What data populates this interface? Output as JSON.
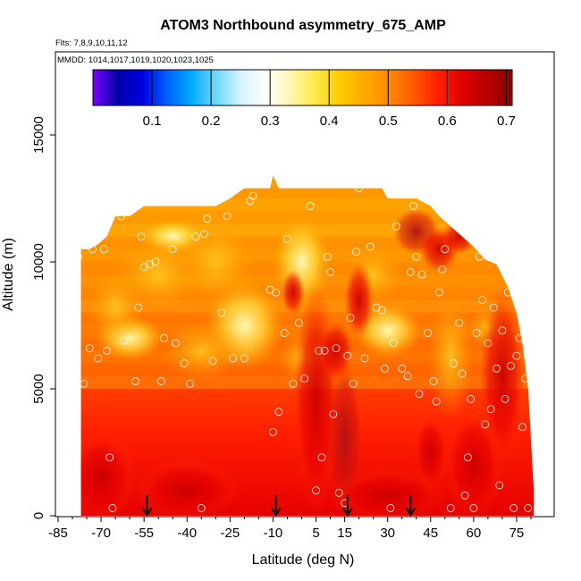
{
  "chart_data": {
    "type": "heatmap",
    "title": "ATOM3 Northbound asymmetry_675_AMP",
    "flights_note": "Flts: 7,8,9,10,11,12",
    "dates_note": "MMDD: 1014,1017,1019,1020,1023,1025",
    "xlabel": "Latitude (deg N)",
    "ylabel": "Altitude (m)",
    "xlim": [
      -85,
      85
    ],
    "ylim": [
      0,
      18000
    ],
    "x_ticks": [
      -85,
      -70,
      -55,
      -40,
      -25,
      -10,
      5,
      15,
      30,
      45,
      60,
      75
    ],
    "y_ticks": [
      0,
      5000,
      10000,
      15000
    ],
    "colorbar": {
      "range": [
        0.0,
        0.71
      ],
      "ticks": [
        0.1,
        0.2,
        0.3,
        0.4,
        0.5,
        0.6,
        0.7
      ],
      "colors": [
        "#7b00ff",
        "#0000a8",
        "#0000e0",
        "#0060ff",
        "#00aaff",
        "#70d8ff",
        "#d6f2ff",
        "#ffffff",
        "#fff6b0",
        "#ffe84a",
        "#ffcc00",
        "#ffaa00",
        "#ff8a00",
        "#ff5a00",
        "#ff1e00",
        "#e00000",
        "#b80000",
        "#8c0000"
      ]
    },
    "profile_arrow_latitudes": [
      -54,
      -9,
      16,
      38
    ],
    "envelope_top_altitude": [
      [
        -77,
        10500
      ],
      [
        -74,
        10500
      ],
      [
        -71,
        10700
      ],
      [
        -68,
        11000
      ],
      [
        -65,
        11800
      ],
      [
        -60,
        11800
      ],
      [
        -55,
        12200
      ],
      [
        -50,
        12200
      ],
      [
        -45,
        12200
      ],
      [
        -40,
        12200
      ],
      [
        -35,
        12200
      ],
      [
        -30,
        12200
      ],
      [
        -25,
        12500
      ],
      [
        -20,
        12900
      ],
      [
        -15,
        12900
      ],
      [
        -11,
        12900
      ],
      [
        -10,
        13400
      ],
      [
        -8,
        12900
      ],
      [
        -3,
        12900
      ],
      [
        2,
        12900
      ],
      [
        8,
        12900
      ],
      [
        15,
        12900
      ],
      [
        22,
        12900
      ],
      [
        28,
        12900
      ],
      [
        30,
        12500
      ],
      [
        35,
        12500
      ],
      [
        40,
        12500
      ],
      [
        45,
        12200
      ],
      [
        48,
        11800
      ],
      [
        52,
        11400
      ],
      [
        56,
        11000
      ],
      [
        60,
        10600
      ],
      [
        64,
        10100
      ],
      [
        68,
        9900
      ],
      [
        72,
        9000
      ],
      [
        75,
        8000
      ],
      [
        77,
        6800
      ],
      [
        79,
        5000
      ],
      [
        81,
        1000
      ]
    ],
    "field_description": "asymmetry parameter at 675 nm (AMP), values ~0.45-0.70, higher near surface and in tropics",
    "sample_points": [
      [
        -80,
        7800
      ],
      [
        -78,
        10200
      ],
      [
        -76,
        5200
      ],
      [
        -74,
        6600
      ],
      [
        -73,
        10500
      ],
      [
        -71,
        6200
      ],
      [
        -69,
        10500
      ],
      [
        -68,
        6500
      ],
      [
        -67,
        2300
      ],
      [
        -66,
        300
      ],
      [
        -63,
        11800
      ],
      [
        -62,
        6900
      ],
      [
        -58,
        5300
      ],
      [
        -57,
        8200
      ],
      [
        -56,
        11000
      ],
      [
        -55,
        9800
      ],
      [
        -53,
        9900
      ],
      [
        -51,
        10000
      ],
      [
        -49,
        5300
      ],
      [
        -48,
        7000
      ],
      [
        -45,
        10500
      ],
      [
        -44,
        6800
      ],
      [
        -41,
        6000
      ],
      [
        -39,
        5200
      ],
      [
        -37,
        11000
      ],
      [
        -35,
        300
      ],
      [
        -34,
        11100
      ],
      [
        -33,
        11700
      ],
      [
        -31,
        6100
      ],
      [
        -28,
        8000
      ],
      [
        -26,
        11800
      ],
      [
        -24,
        6200
      ],
      [
        -20,
        6200
      ],
      [
        -18,
        12400
      ],
      [
        -17,
        12600
      ],
      [
        -14,
        13200
      ],
      [
        -11,
        8900
      ],
      [
        -10,
        3300
      ],
      [
        -9,
        8800
      ],
      [
        -8,
        4100
      ],
      [
        -6,
        7200
      ],
      [
        -5,
        10900
      ],
      [
        -3,
        5200
      ],
      [
        -1,
        7600
      ],
      [
        1,
        5400
      ],
      [
        3,
        12200
      ],
      [
        5,
        1000
      ],
      [
        6,
        6500
      ],
      [
        7,
        2300
      ],
      [
        8,
        6500
      ],
      [
        9,
        10200
      ],
      [
        10,
        9600
      ],
      [
        11,
        4000
      ],
      [
        12,
        6600
      ],
      [
        13,
        900
      ],
      [
        15,
        500
      ],
      [
        16,
        6300
      ],
      [
        17,
        7800
      ],
      [
        18,
        5200
      ],
      [
        19,
        10400
      ],
      [
        20,
        12900
      ],
      [
        22,
        6200
      ],
      [
        24,
        10600
      ],
      [
        26,
        8200
      ],
      [
        28,
        8100
      ],
      [
        29,
        5800
      ],
      [
        31,
        300
      ],
      [
        32,
        6800
      ],
      [
        33,
        11400
      ],
      [
        35,
        5800
      ],
      [
        37,
        5500
      ],
      [
        38,
        9600
      ],
      [
        39,
        12200
      ],
      [
        40,
        10200
      ],
      [
        41,
        4800
      ],
      [
        42,
        9500
      ],
      [
        44,
        7200
      ],
      [
        46,
        5300
      ],
      [
        47,
        4500
      ],
      [
        48,
        8800
      ],
      [
        49,
        9700
      ],
      [
        50,
        10500
      ],
      [
        51,
        12100
      ],
      [
        52,
        300
      ],
      [
        53,
        6000
      ],
      [
        55,
        7600
      ],
      [
        56,
        5600
      ],
      [
        57,
        800
      ],
      [
        58,
        2300
      ],
      [
        59,
        4600
      ],
      [
        60,
        300
      ],
      [
        61,
        7200
      ],
      [
        62,
        10200
      ],
      [
        63,
        8500
      ],
      [
        64,
        3600
      ],
      [
        65,
        6800
      ],
      [
        66,
        4200
      ],
      [
        67,
        8200
      ],
      [
        68,
        5800
      ],
      [
        69,
        1200
      ],
      [
        70,
        7300
      ],
      [
        71,
        4600
      ],
      [
        72,
        8800
      ],
      [
        73,
        5900
      ],
      [
        74,
        300
      ],
      [
        75,
        6300
      ],
      [
        76,
        7000
      ],
      [
        77,
        3500
      ],
      [
        78,
        5400
      ],
      [
        79,
        300
      ]
    ]
  }
}
